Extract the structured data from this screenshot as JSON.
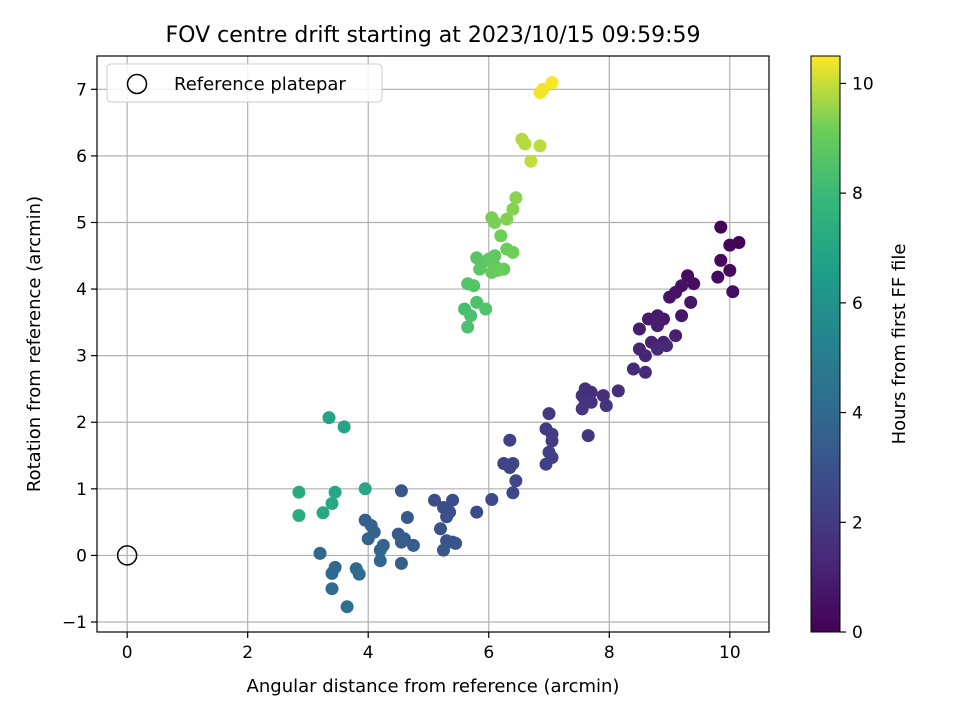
{
  "chart_data": {
    "type": "scatter",
    "title": "FOV centre drift starting at 2023/10/15 09:59:59",
    "xlabel": "Angular distance from reference (arcmin)",
    "ylabel": "Rotation from reference (arcmin)",
    "xlim": [
      -0.5,
      10.65
    ],
    "ylim": [
      -1.15,
      7.5
    ],
    "xticks": [
      0,
      2,
      4,
      6,
      8,
      10
    ],
    "yticks": [
      -1,
      0,
      1,
      2,
      3,
      4,
      5,
      6,
      7
    ],
    "grid": true,
    "legend": {
      "position": "top-left",
      "entries": [
        "Reference platepar"
      ]
    },
    "reference_point": {
      "x": 0,
      "y": 0
    },
    "colorbar": {
      "label": "Hours from first FF file",
      "range": [
        0,
        10.5
      ],
      "ticks": [
        0,
        2,
        4,
        6,
        8,
        10
      ],
      "colormap": "viridis"
    },
    "points": [
      {
        "x": 9.85,
        "y": 4.93,
        "c": 0.1
      },
      {
        "x": 10.15,
        "y": 4.7,
        "c": 0.15
      },
      {
        "x": 10.0,
        "y": 4.66,
        "c": 0.2
      },
      {
        "x": 9.85,
        "y": 4.43,
        "c": 0.25
      },
      {
        "x": 10.0,
        "y": 4.28,
        "c": 0.3
      },
      {
        "x": 9.8,
        "y": 4.18,
        "c": 0.35
      },
      {
        "x": 10.05,
        "y": 3.96,
        "c": 0.4
      },
      {
        "x": 9.3,
        "y": 4.2,
        "c": 0.45
      },
      {
        "x": 9.4,
        "y": 4.08,
        "c": 0.5
      },
      {
        "x": 9.2,
        "y": 4.05,
        "c": 0.55
      },
      {
        "x": 9.1,
        "y": 3.95,
        "c": 0.6
      },
      {
        "x": 9.0,
        "y": 3.88,
        "c": 0.65
      },
      {
        "x": 9.35,
        "y": 3.8,
        "c": 0.7
      },
      {
        "x": 9.2,
        "y": 3.6,
        "c": 0.75
      },
      {
        "x": 8.9,
        "y": 3.55,
        "c": 0.8
      },
      {
        "x": 8.8,
        "y": 3.6,
        "c": 0.85
      },
      {
        "x": 8.65,
        "y": 3.55,
        "c": 0.9
      },
      {
        "x": 8.5,
        "y": 3.4,
        "c": 0.95
      },
      {
        "x": 8.8,
        "y": 3.45,
        "c": 1.0
      },
      {
        "x": 9.1,
        "y": 3.3,
        "c": 1.05
      },
      {
        "x": 8.9,
        "y": 3.2,
        "c": 1.1
      },
      {
        "x": 8.7,
        "y": 3.2,
        "c": 1.15
      },
      {
        "x": 8.5,
        "y": 3.1,
        "c": 1.2
      },
      {
        "x": 8.6,
        "y": 3.0,
        "c": 1.25
      },
      {
        "x": 8.8,
        "y": 3.1,
        "c": 1.3
      },
      {
        "x": 8.95,
        "y": 3.15,
        "c": 1.35
      },
      {
        "x": 8.4,
        "y": 2.8,
        "c": 1.4
      },
      {
        "x": 8.6,
        "y": 2.75,
        "c": 1.45
      },
      {
        "x": 8.15,
        "y": 2.47,
        "c": 1.5
      },
      {
        "x": 7.9,
        "y": 2.4,
        "c": 1.55
      },
      {
        "x": 7.7,
        "y": 2.45,
        "c": 1.6
      },
      {
        "x": 7.6,
        "y": 2.5,
        "c": 1.65
      },
      {
        "x": 7.55,
        "y": 2.4,
        "c": 1.7
      },
      {
        "x": 7.6,
        "y": 2.3,
        "c": 1.75
      },
      {
        "x": 7.7,
        "y": 2.3,
        "c": 1.8
      },
      {
        "x": 7.95,
        "y": 2.25,
        "c": 1.85
      },
      {
        "x": 7.55,
        "y": 2.2,
        "c": 1.9
      },
      {
        "x": 7.65,
        "y": 1.8,
        "c": 1.95
      },
      {
        "x": 7.0,
        "y": 2.13,
        "c": 2.0
      },
      {
        "x": 6.95,
        "y": 1.9,
        "c": 2.05
      },
      {
        "x": 7.05,
        "y": 1.82,
        "c": 2.1
      },
      {
        "x": 7.05,
        "y": 1.72,
        "c": 2.15
      },
      {
        "x": 7.0,
        "y": 1.55,
        "c": 2.2
      },
      {
        "x": 7.05,
        "y": 1.47,
        "c": 2.25
      },
      {
        "x": 6.95,
        "y": 1.37,
        "c": 2.3
      },
      {
        "x": 6.35,
        "y": 1.73,
        "c": 2.35
      },
      {
        "x": 6.25,
        "y": 1.38,
        "c": 2.4
      },
      {
        "x": 6.4,
        "y": 1.38,
        "c": 2.45
      },
      {
        "x": 6.35,
        "y": 1.32,
        "c": 2.5
      },
      {
        "x": 6.45,
        "y": 1.12,
        "c": 2.55
      },
      {
        "x": 6.4,
        "y": 0.94,
        "c": 2.6
      },
      {
        "x": 6.05,
        "y": 0.84,
        "c": 2.65
      },
      {
        "x": 5.8,
        "y": 0.65,
        "c": 2.7
      },
      {
        "x": 5.1,
        "y": 0.83,
        "c": 2.75
      },
      {
        "x": 5.4,
        "y": 0.83,
        "c": 2.8
      },
      {
        "x": 5.25,
        "y": 0.72,
        "c": 2.85
      },
      {
        "x": 5.35,
        "y": 0.65,
        "c": 2.9
      },
      {
        "x": 5.3,
        "y": 0.58,
        "c": 2.95
      },
      {
        "x": 5.2,
        "y": 0.4,
        "c": 3.0
      },
      {
        "x": 5.3,
        "y": 0.22,
        "c": 3.05
      },
      {
        "x": 5.4,
        "y": 0.2,
        "c": 3.1
      },
      {
        "x": 5.45,
        "y": 0.18,
        "c": 3.15
      },
      {
        "x": 5.25,
        "y": 0.08,
        "c": 3.2
      },
      {
        "x": 4.55,
        "y": 0.97,
        "c": 3.25
      },
      {
        "x": 4.65,
        "y": 0.57,
        "c": 3.3
      },
      {
        "x": 4.5,
        "y": 0.32,
        "c": 3.35
      },
      {
        "x": 4.6,
        "y": 0.25,
        "c": 3.4
      },
      {
        "x": 4.55,
        "y": 0.2,
        "c": 3.45
      },
      {
        "x": 4.75,
        "y": 0.15,
        "c": 3.5
      },
      {
        "x": 4.55,
        "y": -0.12,
        "c": 3.55
      },
      {
        "x": 3.95,
        "y": 0.53,
        "c": 3.6
      },
      {
        "x": 4.05,
        "y": 0.45,
        "c": 3.65
      },
      {
        "x": 4.1,
        "y": 0.35,
        "c": 3.7
      },
      {
        "x": 4.0,
        "y": 0.25,
        "c": 3.75
      },
      {
        "x": 4.25,
        "y": 0.15,
        "c": 3.8
      },
      {
        "x": 4.2,
        "y": 0.08,
        "c": 3.85
      },
      {
        "x": 4.2,
        "y": -0.08,
        "c": 3.9
      },
      {
        "x": 3.2,
        "y": 0.03,
        "c": 3.95
      },
      {
        "x": 3.45,
        "y": -0.18,
        "c": 4.0
      },
      {
        "x": 3.4,
        "y": -0.27,
        "c": 4.05
      },
      {
        "x": 3.8,
        "y": -0.2,
        "c": 4.1
      },
      {
        "x": 3.85,
        "y": -0.28,
        "c": 4.15
      },
      {
        "x": 3.4,
        "y": -0.5,
        "c": 4.2
      },
      {
        "x": 3.65,
        "y": -0.77,
        "c": 4.25
      },
      {
        "x": 3.35,
        "y": 2.07,
        "c": 6.9
      },
      {
        "x": 3.6,
        "y": 1.93,
        "c": 6.95
      },
      {
        "x": 3.95,
        "y": 1.0,
        "c": 7.0
      },
      {
        "x": 3.45,
        "y": 0.95,
        "c": 7.05
      },
      {
        "x": 3.4,
        "y": 0.78,
        "c": 7.1
      },
      {
        "x": 3.25,
        "y": 0.64,
        "c": 7.15
      },
      {
        "x": 2.85,
        "y": 0.95,
        "c": 7.2
      },
      {
        "x": 2.85,
        "y": 0.6,
        "c": 7.25
      },
      {
        "x": 5.6,
        "y": 3.7,
        "c": 8.3
      },
      {
        "x": 5.7,
        "y": 3.6,
        "c": 8.35
      },
      {
        "x": 5.65,
        "y": 3.43,
        "c": 8.4
      },
      {
        "x": 5.8,
        "y": 3.8,
        "c": 8.45
      },
      {
        "x": 5.95,
        "y": 3.7,
        "c": 8.5
      },
      {
        "x": 5.65,
        "y": 4.08,
        "c": 8.55
      },
      {
        "x": 5.75,
        "y": 4.05,
        "c": 8.6
      },
      {
        "x": 5.8,
        "y": 4.47,
        "c": 8.65
      },
      {
        "x": 5.9,
        "y": 4.4,
        "c": 8.7
      },
      {
        "x": 5.85,
        "y": 4.3,
        "c": 8.75
      },
      {
        "x": 6.0,
        "y": 4.45,
        "c": 8.8
      },
      {
        "x": 6.1,
        "y": 4.5,
        "c": 8.85
      },
      {
        "x": 6.1,
        "y": 4.35,
        "c": 8.9
      },
      {
        "x": 6.05,
        "y": 4.25,
        "c": 8.95
      },
      {
        "x": 6.25,
        "y": 4.3,
        "c": 9.0
      },
      {
        "x": 6.15,
        "y": 4.28,
        "c": 9.05
      },
      {
        "x": 6.3,
        "y": 4.6,
        "c": 9.1
      },
      {
        "x": 6.4,
        "y": 4.55,
        "c": 9.15
      },
      {
        "x": 6.2,
        "y": 4.8,
        "c": 9.2
      },
      {
        "x": 6.05,
        "y": 5.07,
        "c": 9.25
      },
      {
        "x": 6.1,
        "y": 5.0,
        "c": 9.3
      },
      {
        "x": 6.3,
        "y": 5.05,
        "c": 9.35
      },
      {
        "x": 6.4,
        "y": 5.2,
        "c": 9.4
      },
      {
        "x": 6.45,
        "y": 5.37,
        "c": 9.45
      },
      {
        "x": 6.55,
        "y": 6.25,
        "c": 9.8
      },
      {
        "x": 6.6,
        "y": 6.18,
        "c": 9.85
      },
      {
        "x": 6.85,
        "y": 6.15,
        "c": 9.9
      },
      {
        "x": 6.7,
        "y": 5.92,
        "c": 9.95
      },
      {
        "x": 6.9,
        "y": 7.0,
        "c": 10.35
      },
      {
        "x": 6.85,
        "y": 6.95,
        "c": 10.4
      },
      {
        "x": 7.05,
        "y": 7.1,
        "c": 10.45
      }
    ]
  }
}
